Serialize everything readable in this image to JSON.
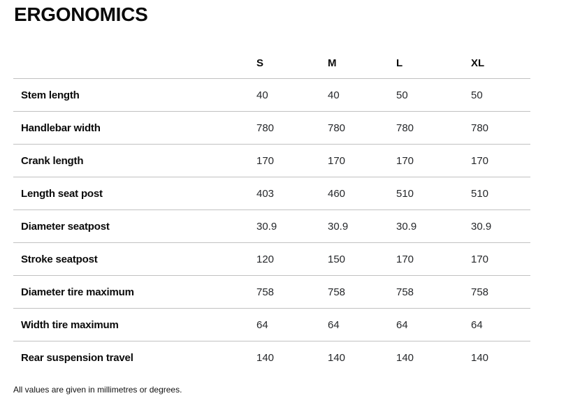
{
  "page": {
    "title": "ERGONOMICS",
    "footnote": "All values are given in millimetres or degrees."
  },
  "table": {
    "columns": [
      "S",
      "M",
      "L",
      "XL"
    ],
    "rows": [
      {
        "label": "Stem length",
        "values": [
          "40",
          "40",
          "50",
          "50"
        ]
      },
      {
        "label": "Handlebar width",
        "values": [
          "780",
          "780",
          "780",
          "780"
        ]
      },
      {
        "label": "Crank length",
        "values": [
          "170",
          "170",
          "170",
          "170"
        ]
      },
      {
        "label": "Length seat post",
        "values": [
          "403",
          "460",
          "510",
          "510"
        ]
      },
      {
        "label": "Diameter seatpost",
        "values": [
          "30.9",
          "30.9",
          "30.9",
          "30.9"
        ]
      },
      {
        "label": "Stroke seatpost",
        "values": [
          "120",
          "150",
          "170",
          "170"
        ]
      },
      {
        "label": "Diameter tire maximum",
        "values": [
          "758",
          "758",
          "758",
          "758"
        ]
      },
      {
        "label": "Width tire maximum",
        "values": [
          "64",
          "64",
          "64",
          "64"
        ]
      },
      {
        "label": "Rear suspension travel",
        "values": [
          "140",
          "140",
          "140",
          "140"
        ]
      }
    ]
  },
  "colors": {
    "heading_text": "#0b0b0b",
    "value_text": "#26282b",
    "divider": "#c1c1c1",
    "background": "#ffffff"
  }
}
